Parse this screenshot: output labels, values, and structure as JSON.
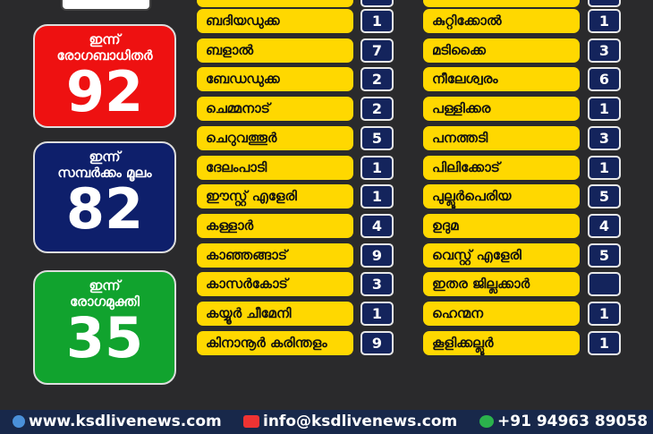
{
  "stats": [
    {
      "label": [
        "ഇന്ന്",
        "രോഗബാധിതർ"
      ],
      "value": 92
    },
    {
      "label": [
        "ഇന്ന്",
        "സമ്പർക്കം മൂലം"
      ],
      "value": 82
    },
    {
      "label": [
        "ഇന്ന്",
        "രോഗമുക്തി"
      ],
      "value": 35
    }
  ],
  "left_rows": [
    {
      "name": "ബദിയഡുക്ക",
      "count": 1
    },
    {
      "name": "ബളാൽ",
      "count": 7
    },
    {
      "name": "ബേഡഡുക്ക",
      "count": 2
    },
    {
      "name": "ചെമ്മനാട്",
      "count": 2
    },
    {
      "name": "ചെറുവത്തൂർ",
      "count": 5
    },
    {
      "name": "ദേലംപാടി",
      "count": 1
    },
    {
      "name": "ഈസ്റ്റ് എളേരി",
      "count": 1
    },
    {
      "name": "കള്ളാർ",
      "count": 4
    },
    {
      "name": "കാഞ്ഞങ്ങാട്",
      "count": 9
    },
    {
      "name": "കാസർകോട്",
      "count": 3
    },
    {
      "name": "കയ്യൂർ ചീമേനി",
      "count": 1
    },
    {
      "name": "കിനാനൂർ കരിന്തളം",
      "count": 9
    }
  ],
  "right_rows": [
    {
      "name": "കുറ്റിക്കോൽ",
      "count": 1
    },
    {
      "name": "മടിക്കൈ",
      "count": 3
    },
    {
      "name": "നീലേശ്വരം",
      "count": 6
    },
    {
      "name": "പള്ളിക്കര",
      "count": 1
    },
    {
      "name": "പനത്തടി",
      "count": 3
    },
    {
      "name": "പിലിക്കോട്",
      "count": 1
    },
    {
      "name": "പുല്ലൂർപെരിയ",
      "count": 5
    },
    {
      "name": "ഉദുമ",
      "count": 4
    },
    {
      "name": "വെസ്റ്റ് എളേരി",
      "count": 5
    },
    {
      "name": "ഇതര ജില്ലക്കാർ"
    },
    {
      "name": "ഹെന്മന",
      "count": 1
    },
    {
      "name": "കൂളിക്കല്ലൂർ",
      "count": 1
    }
  ],
  "footer": {
    "website": "www.ksdlivenews.com",
    "email": "info@ksdlivenews.com",
    "phone": "+91 94963 89058"
  }
}
